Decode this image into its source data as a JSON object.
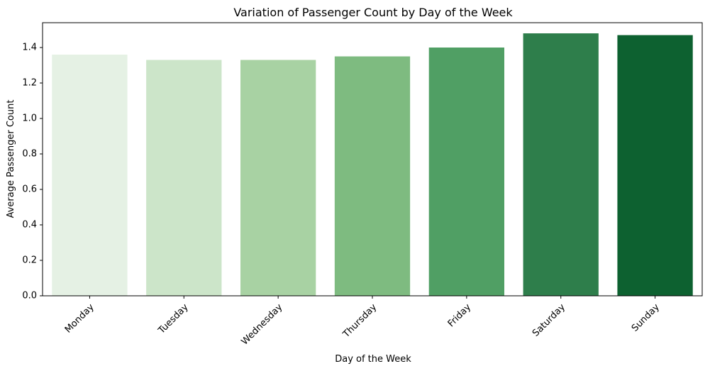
{
  "chart_data": {
    "type": "bar",
    "title": "Variation of Passenger Count by Day of the Week",
    "xlabel": "Day of the Week",
    "ylabel": "Average Passenger Count",
    "categories": [
      "Monday",
      "Tuesday",
      "Wednesday",
      "Thursday",
      "Friday",
      "Saturday",
      "Sunday"
    ],
    "values": [
      1.36,
      1.33,
      1.33,
      1.35,
      1.4,
      1.48,
      1.47
    ],
    "colors": [
      "#e5f1e4",
      "#cce5c9",
      "#a8d2a3",
      "#7ebb80",
      "#509f64",
      "#2e7e4b",
      "#0d6130"
    ],
    "ylim": [
      0,
      1.54
    ],
    "yticks": [
      0.0,
      0.2,
      0.4,
      0.6,
      0.8,
      1.0,
      1.2,
      1.4
    ],
    "ytick_labels": [
      "0.0",
      "0.2",
      "0.4",
      "0.6",
      "0.8",
      "1.0",
      "1.2",
      "1.4"
    ],
    "xtick_rotation": 45,
    "grid": false,
    "legend": "none"
  }
}
